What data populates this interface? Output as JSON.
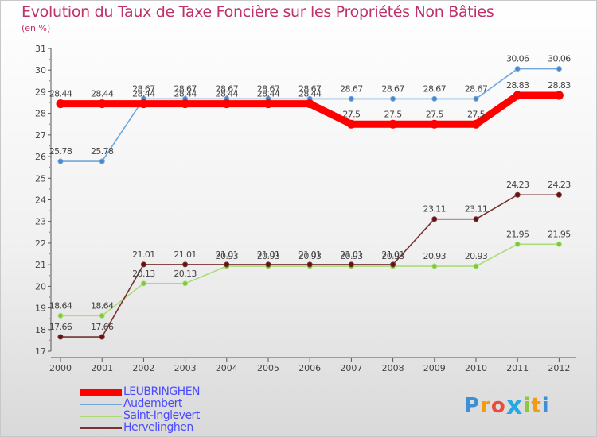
{
  "chart_data": {
    "type": "line",
    "title": "Evolution du Taux de Taxe Foncière sur les Propriétés Non Bâties",
    "subtitle": "(en %)",
    "xlabel": "",
    "ylabel": "",
    "categories": [
      "2000",
      "2001",
      "2002",
      "2003",
      "2004",
      "2005",
      "2006",
      "2007",
      "2008",
      "2009",
      "2010",
      "2011",
      "2012"
    ],
    "y_ticks": [
      "17",
      "18",
      "19",
      "20",
      "21",
      "22",
      "23",
      "24",
      "25",
      "26",
      "27",
      "28",
      "29",
      "30",
      "31"
    ],
    "ylim": [
      17,
      31
    ],
    "grid": false,
    "legend_position": "bottom-left",
    "series": [
      {
        "name": "LEUBRINGHEN",
        "color": "#ff0000",
        "emphasis": "thick",
        "values": [
          28.44,
          28.44,
          28.44,
          28.44,
          28.44,
          28.44,
          28.44,
          27.5,
          27.5,
          27.5,
          27.5,
          28.83,
          28.83
        ],
        "labels": [
          "28.44",
          "28.44",
          "28.44",
          "28.44",
          "28.44",
          "28.44",
          "28.44",
          "27.5",
          "27.5",
          "27.5",
          "27.5",
          "28.83",
          "28.83"
        ]
      },
      {
        "name": "Audembert",
        "color": "#6fa8dc",
        "marker": "#4a86c8",
        "values": [
          25.78,
          25.78,
          28.67,
          28.67,
          28.67,
          28.67,
          28.67,
          28.67,
          28.67,
          28.67,
          28.67,
          30.06,
          30.06
        ],
        "labels": [
          "25.78",
          "25.78",
          "28.67",
          "28.67",
          "28.67",
          "28.67",
          "28.67",
          "28.67",
          "28.67",
          "28.67",
          "28.67",
          "30.06",
          "30.06"
        ]
      },
      {
        "name": "Saint-Inglevert",
        "color": "#aadd77",
        "marker": "#77cc33",
        "values": [
          18.64,
          18.64,
          20.13,
          20.13,
          20.93,
          20.93,
          20.93,
          20.93,
          20.93,
          20.93,
          20.93,
          21.95,
          21.95
        ],
        "labels": [
          "18.64",
          "18.64",
          "20.13",
          "20.13",
          "20.93",
          "20.93",
          "20.93",
          "20.93",
          "20.93",
          "20.93",
          "20.93",
          "21.95",
          "21.95"
        ]
      },
      {
        "name": "Hervelinghen",
        "color": "#773333",
        "marker": "#661111",
        "values": [
          17.66,
          17.66,
          21.01,
          21.01,
          21.01,
          21.01,
          21.01,
          21.01,
          21.01,
          23.11,
          23.11,
          24.23,
          24.23
        ],
        "labels": [
          "17.66",
          "17.66",
          "21.01",
          "21.01",
          "21.01",
          "21.01",
          "21.01",
          "21.01",
          "21.01",
          "23.11",
          "23.11",
          "24.23",
          "24.23"
        ]
      }
    ]
  },
  "logo": {
    "letters": [
      "P",
      "r",
      "o",
      "x",
      "i",
      "t",
      "i"
    ],
    "colors": [
      "#3d8fd6",
      "#f39c12",
      "#e84c3d",
      "#27a9e1",
      "#8dc63f",
      "#f39c12",
      "#3d8fd6"
    ]
  }
}
